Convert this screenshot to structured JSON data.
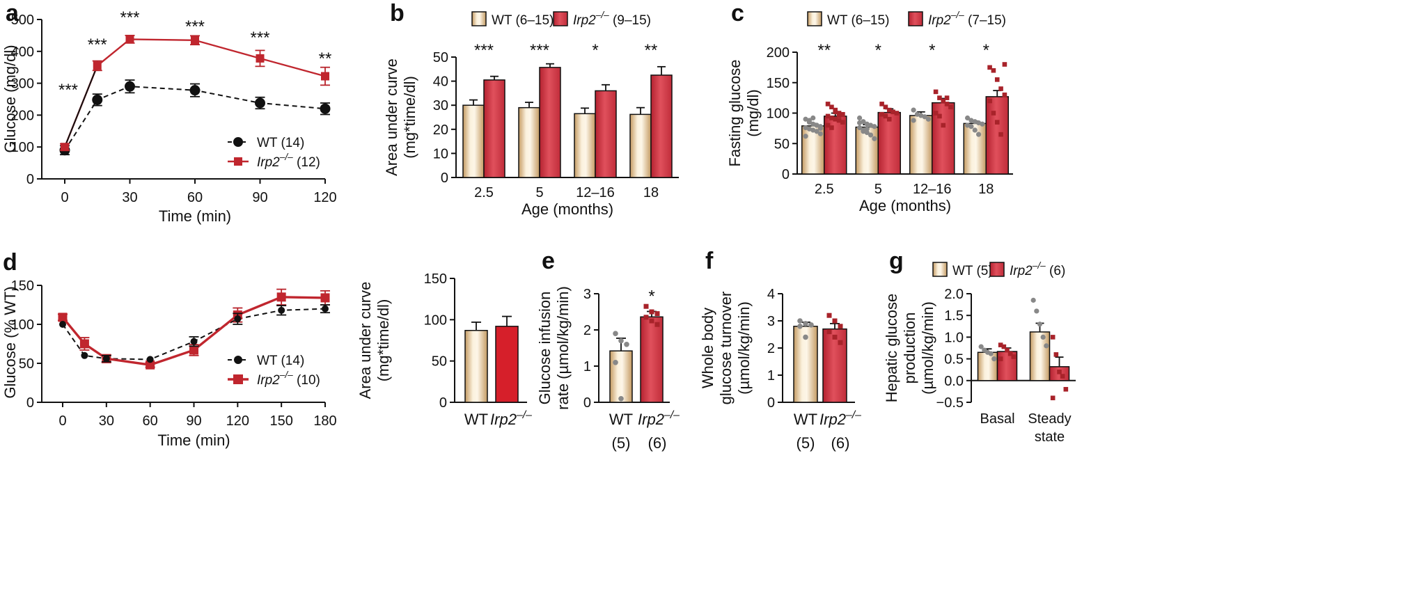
{
  "colors": {
    "wt_bar_light": "#fbf1dd",
    "wt_bar_dark": "#c8a36c",
    "irp2_bar": "#e04a57",
    "irp2_bar_dark": "#b42230",
    "red_line": "#c0262e",
    "black": "#111111",
    "dot_grey": "#888888",
    "dot_red": "#a8232a"
  },
  "chart_data": [
    {
      "id": "a",
      "panel_label": "a",
      "type": "line",
      "xlabel": "Time (min)",
      "ylabel": "Glucose (mg/dl)",
      "xlim": [
        0,
        120
      ],
      "ylim": [
        0,
        500
      ],
      "xticks": [
        "0",
        "30",
        "60",
        "90",
        "120"
      ],
      "yticks": [
        "0",
        "100",
        "200",
        "300",
        "400",
        "500"
      ],
      "series": [
        {
          "name": "WT",
          "legend": "WT",
          "n": "(14)",
          "x": [
            0,
            15,
            30,
            60,
            90,
            120
          ],
          "y": [
            90,
            248,
            290,
            278,
            238,
            220
          ],
          "err": [
            14,
            18,
            20,
            20,
            18,
            18
          ]
        },
        {
          "name": "Irp2-/-",
          "legend": "Irp2",
          "sup": "–/–",
          "n": "(12)",
          "x": [
            0,
            15,
            30,
            60,
            90,
            120
          ],
          "y": [
            100,
            355,
            438,
            435,
            378,
            322
          ],
          "err": [
            10,
            15,
            12,
            14,
            25,
            28
          ]
        }
      ],
      "significance": [
        {
          "x": 0,
          "label": "***"
        },
        {
          "x": 15,
          "label": "***"
        },
        {
          "x": 30,
          "label": "***"
        },
        {
          "x": 60,
          "label": "***"
        },
        {
          "x": 90,
          "label": "***"
        },
        {
          "x": 120,
          "label": "**"
        }
      ]
    },
    {
      "id": "b",
      "panel_label": "b",
      "type": "bar",
      "xlabel": "Age (months)",
      "ylabel_lines": [
        "Area under curve",
        "(mg*time/dl)"
      ],
      "ylim": [
        0,
        50
      ],
      "yticks": [
        "0",
        "10",
        "20",
        "30",
        "40",
        "50"
      ],
      "categories": [
        "2.5",
        "5",
        "12–16",
        "18"
      ],
      "series": [
        {
          "name": "WT",
          "legend": "WT (6–15)",
          "values": [
            30,
            29,
            26.5,
            26.2
          ],
          "err": [
            2.2,
            2.2,
            2.3,
            2.8
          ]
        },
        {
          "name": "Irp2-/-",
          "legend": "Irp2",
          "sup": "–/–",
          "n": "(9–15)",
          "values": [
            40.5,
            45.7,
            36,
            42.5
          ],
          "err": [
            1.5,
            1.5,
            2.5,
            3.5
          ]
        }
      ],
      "significance": [
        "***",
        "***",
        "*",
        "**"
      ]
    },
    {
      "id": "c",
      "panel_label": "c",
      "type": "bar",
      "xlabel": "Age (months)",
      "ylabel_lines": [
        "Fasting glucose",
        "(mg/dl)"
      ],
      "ylim": [
        0,
        200
      ],
      "yticks": [
        "0",
        "50",
        "100",
        "150",
        "200"
      ],
      "categories": [
        "2.5",
        "5",
        "12–16",
        "18"
      ],
      "series": [
        {
          "name": "WT",
          "legend": "WT (6–15)",
          "values": [
            79,
            77,
            96,
            83
          ],
          "err": [
            4,
            4,
            6,
            4
          ],
          "points": [
            [
              90,
              85,
              82,
              80,
              78,
              76,
              74,
              72,
              70,
              66,
              62,
              88,
              92,
              80,
              75
            ],
            [
              92,
              86,
              82,
              80,
              78,
              76,
              72,
              68,
              64,
              58,
              84,
              70,
              74
            ],
            [
              105,
              98,
              96,
              94,
              90,
              88
            ],
            [
              92,
              88,
              86,
              84,
              82,
              80,
              78,
              72,
              65
            ]
          ]
        },
        {
          "name": "Irp2-/-",
          "legend": "Irp2",
          "sup": "–/–",
          "n": "(7–15)",
          "values": [
            95,
            101,
            117,
            127
          ],
          "err": [
            5,
            6,
            7,
            10
          ],
          "points": [
            [
              115,
              110,
              105,
              100,
              98,
              95,
              92,
              90,
              88,
              85,
              80,
              76,
              102,
              96
            ],
            [
              115,
              110,
              105,
              102,
              100,
              98,
              95,
              90
            ],
            [
              135,
              125,
              120,
              115,
              110,
              100,
              95,
              80,
              125
            ],
            [
              175,
              170,
              155,
              140,
              130,
              120,
              100,
              85,
              65,
              180
            ]
          ]
        }
      ],
      "significance": [
        "**",
        "*",
        "*",
        "*"
      ]
    },
    {
      "id": "d",
      "panel_label": "d",
      "type": "line",
      "xlabel": "Time (min)",
      "ylabel": "Glucose (% WT)",
      "xlim": [
        0,
        180
      ],
      "ylim": [
        0,
        150
      ],
      "xticks": [
        "0",
        "30",
        "60",
        "90",
        "120",
        "150",
        "180"
      ],
      "yticks": [
        "0",
        "50",
        "100",
        "150"
      ],
      "series": [
        {
          "name": "WT",
          "legend": "WT",
          "n": "(14)",
          "x": [
            0,
            15,
            30,
            60,
            90,
            120,
            150,
            180
          ],
          "y": [
            100,
            60,
            56,
            55,
            78,
            107,
            118,
            120
          ],
          "err": [
            0,
            0,
            4,
            0,
            6,
            7,
            6,
            5
          ]
        },
        {
          "name": "Irp2-/-",
          "legend": "Irp2",
          "sup": "–/–",
          "n": "(10)",
          "x": [
            0,
            15,
            30,
            60,
            90,
            120,
            150,
            180
          ],
          "y": [
            109,
            75,
            56,
            48,
            67,
            112,
            135,
            134
          ],
          "err": [
            4,
            8,
            5,
            3,
            7,
            9,
            10,
            9
          ]
        }
      ]
    },
    {
      "id": "d2",
      "panel_label": "",
      "type": "bar",
      "xlabel": "",
      "ylabel_lines": [
        "Area under curve",
        "(mg*time/dl)"
      ],
      "ylim": [
        0,
        150
      ],
      "yticks": [
        "0",
        "50",
        "100",
        "150"
      ],
      "categories": [
        "WT",
        "Irp2"
      ],
      "category_sups": [
        "",
        "–/–"
      ],
      "category_ns": [
        "",
        ""
      ],
      "values": [
        87,
        92
      ],
      "err": [
        10,
        12
      ]
    },
    {
      "id": "e",
      "panel_label": "e",
      "type": "bar",
      "xlabel": "",
      "ylabel_lines": [
        "Glucose infusion",
        "rate (µmol/kg/min)"
      ],
      "ylim": [
        0,
        3
      ],
      "yticks": [
        "0",
        "1",
        "2",
        "3"
      ],
      "categories": [
        "WT",
        "Irp2"
      ],
      "category_sups": [
        "",
        "–/–"
      ],
      "category_ns": [
        "(5)",
        "(6)"
      ],
      "values": [
        1.42,
        2.36
      ],
      "err": [
        0.35,
        0.15
      ],
      "points": [
        [
          1.9,
          1.7,
          1.6,
          1.1,
          0.1
        ],
        [
          2.65,
          2.5,
          2.45,
          2.35,
          2.25,
          2.15
        ]
      ],
      "significance": [
        "",
        "*"
      ]
    },
    {
      "id": "f",
      "panel_label": "f",
      "type": "bar",
      "xlabel": "",
      "ylabel_lines": [
        "Whole body",
        "glucose turnover",
        "(µmol/kg/min)"
      ],
      "ylim": [
        0,
        4
      ],
      "yticks": [
        "0",
        "1",
        "2",
        "3",
        "4"
      ],
      "categories": [
        "WT",
        "Irp2"
      ],
      "category_sups": [
        "",
        "–/–"
      ],
      "category_ns": [
        "(5)",
        "(6)"
      ],
      "values": [
        2.8,
        2.7
      ],
      "err": [
        0.15,
        0.2
      ],
      "points": [
        [
          3.0,
          2.9,
          2.85,
          2.8,
          2.4
        ],
        [
          3.2,
          3.0,
          2.8,
          2.6,
          2.4,
          2.2
        ]
      ]
    },
    {
      "id": "g",
      "panel_label": "g",
      "type": "bar",
      "xlabel": "",
      "ylabel_lines": [
        "Hepatic glucose",
        "production",
        "(µmol/kg/min)"
      ],
      "ylim": [
        -0.5,
        2.0
      ],
      "yticks": [
        "−0.5",
        "0.0",
        "0.5",
        "1.0",
        "1.5",
        "2.0"
      ],
      "categories": [
        "Basal",
        "Steady state"
      ],
      "category_lines": [
        [
          "Basal"
        ],
        [
          "Steady",
          "state"
        ]
      ],
      "series": [
        {
          "name": "WT",
          "legend": "WT (5)",
          "values": [
            0.65,
            1.12
          ],
          "err": [
            0.08,
            0.2
          ],
          "points": [
            [
              0.78,
              0.7,
              0.65,
              0.62,
              0.5
            ],
            [
              1.85,
              1.6,
              1.3,
              1.0,
              0.8
            ]
          ]
        },
        {
          "name": "Irp2-/-",
          "legend": "Irp2",
          "sup": "–/–",
          "n": "(6)",
          "values": [
            0.67,
            0.32
          ],
          "err": [
            0.08,
            0.22
          ],
          "points": [
            [
              0.82,
              0.78,
              0.7,
              0.62,
              0.55,
              0.5
            ],
            [
              1.0,
              0.6,
              0.2,
              0.1,
              -0.2,
              -0.4
            ]
          ]
        }
      ]
    }
  ]
}
